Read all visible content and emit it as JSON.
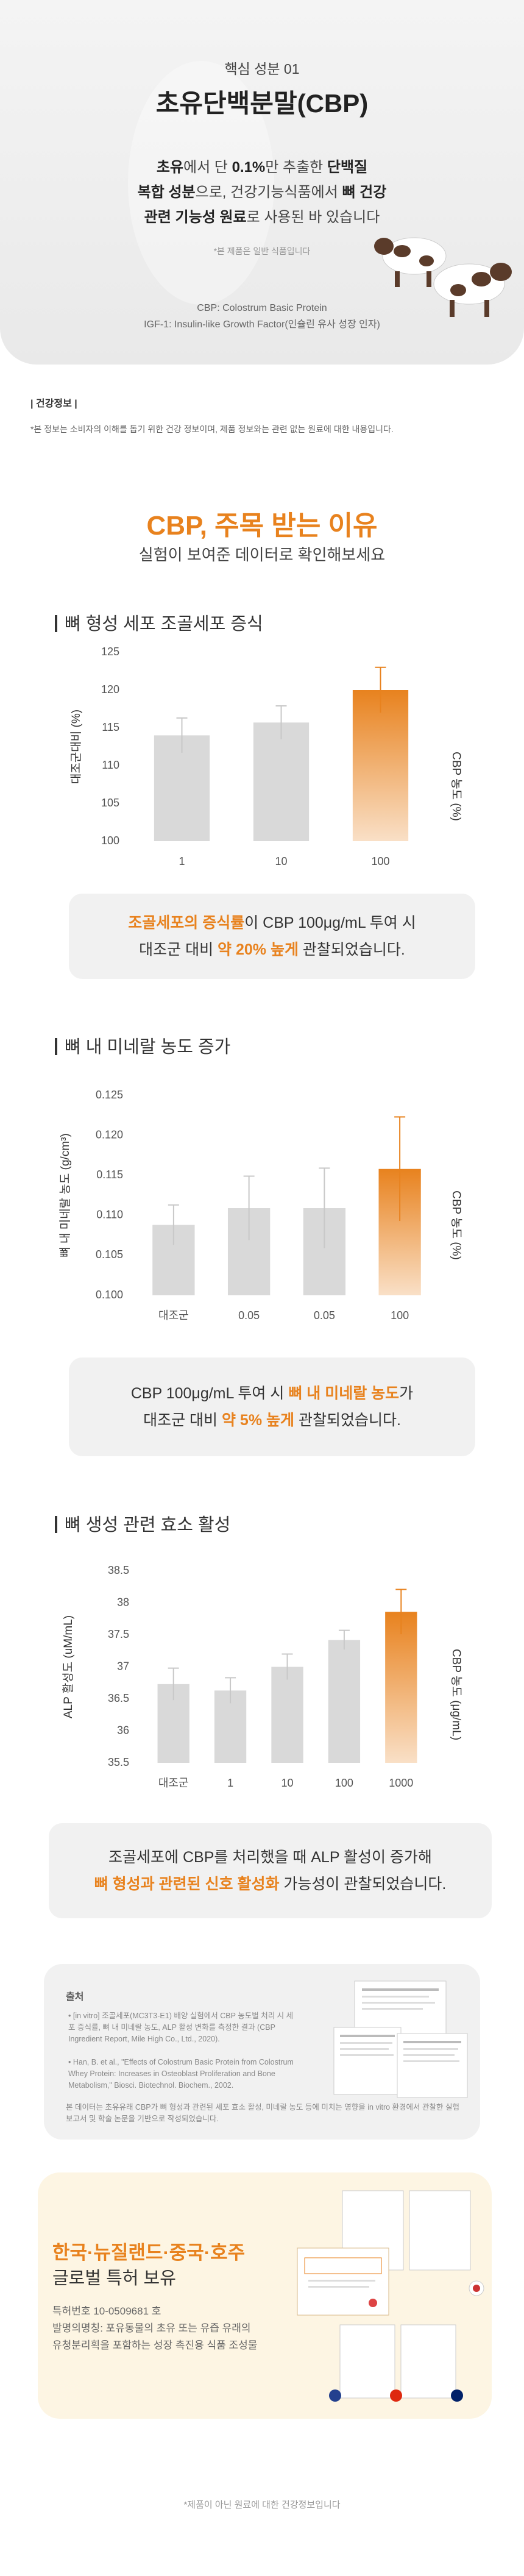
{
  "hero": {
    "eyebrow": "핵심 성분 01",
    "title": "초유단백분말(CBP)",
    "lines": [
      [
        {
          "text": "초유",
          "emphasis": true
        },
        {
          "text": "에서 단 ",
          "emphasis": false
        },
        {
          "text": "0.1%",
          "emphasis": true
        },
        {
          "text": "만 추출한 ",
          "emphasis": false
        },
        {
          "text": "단백질",
          "emphasis": true
        }
      ],
      [
        {
          "text": "복합 성분",
          "emphasis": true
        },
        {
          "text": "으로, 건강기능식품에서 ",
          "emphasis": false
        },
        {
          "text": "뼈 건강",
          "emphasis": true
        }
      ],
      [
        {
          "text": "관련 기능성 원료",
          "emphasis": true
        },
        {
          "text": "로 사용된 바 있습니다",
          "emphasis": false
        }
      ]
    ],
    "note": "*본 제품은 일반 식품입니다",
    "glossary": [
      "CBP: Colostrum Basic Protein",
      "IGF-1: Insulin-like Growth Factor(인슐린 유사 성장 인자)"
    ]
  },
  "health_info": {
    "label": "| 건강정보 |",
    "note": "*본 정보는 소비자의 이해를 돕기 위한 건강 정보이며, 제품 정보와는 관련 없는 원료에 대한 내용입니다."
  },
  "reasons": {
    "title": "CBP, 주목 받는 이유",
    "subtitle": "실험이 보여준 데이터로 확인해보세요"
  },
  "chart_data": [
    {
      "type": "bar",
      "title": "뼈 형성 세포 조골세포 증식",
      "y_label": "대조군대비 (%)",
      "x_label": "CBP 농도 (%)",
      "categories": [
        "1",
        "10",
        "100"
      ],
      "values": [
        114,
        115.7,
        120
      ],
      "errors": [
        2.3,
        2.2,
        3.0
      ],
      "colors": [
        "#d9d9d9",
        "#d9d9d9",
        "#e8821e"
      ],
      "ylim": [
        100,
        125
      ],
      "yticks": [
        100,
        105,
        110,
        115,
        120,
        125
      ],
      "grid": false,
      "callout": [
        [
          {
            "text": "조골세포의 증식률",
            "emphasis": true
          },
          {
            "text": "이 CBP 100μg/mL 투여 시",
            "emphasis": false
          }
        ],
        [
          {
            "text": "대조군 대비 ",
            "emphasis": false
          },
          {
            "text": "약 20% 높게",
            "emphasis": true
          },
          {
            "text": " 관찰되었습니다.",
            "emphasis": false
          }
        ]
      ]
    },
    {
      "type": "bar",
      "title": "뼈 내 미네랄 농도 증가",
      "y_label": "뼈 내 미네랄 농도 (g/cm³)",
      "x_label": "CBP 농도 (%)",
      "categories": [
        "대조군",
        "0.05",
        "0.05",
        "100"
      ],
      "values": [
        0.1088,
        0.1109,
        0.1109,
        0.1158
      ],
      "errors": [
        0.0025,
        0.004,
        0.005,
        0.0065
      ],
      "colors": [
        "#d9d9d9",
        "#d9d9d9",
        "#d9d9d9",
        "#e8821e"
      ],
      "ylim": [
        0.1,
        0.125
      ],
      "yticks": [
        {
          "value": 0.1,
          "label": "0.100"
        },
        0.105,
        {
          "value": 0.11,
          "label": "0.110"
        },
        0.115,
        {
          "value": 0.12,
          "label": "0.120"
        },
        0.125
      ],
      "grid": false,
      "callout": [
        [
          {
            "text": "CBP 100μg/mL 투여 시 ",
            "emphasis": false
          },
          {
            "text": "뼈 내 미네랄 농도",
            "emphasis": true
          },
          {
            "text": "가",
            "emphasis": false
          }
        ],
        [
          {
            "text": "대조군 대비 ",
            "emphasis": false
          },
          {
            "text": "약 5% 높게",
            "emphasis": true
          },
          {
            "text": " 관찰되었습니다.",
            "emphasis": false
          }
        ]
      ]
    },
    {
      "type": "bar",
      "title": "뼈 생성 관련 효소 활성",
      "y_label": "ALP 활성도 (uM/mL)",
      "x_label": "CBP 농도 (μg/mL)",
      "categories": [
        "대조군",
        "1",
        "10",
        "100",
        "1000"
      ],
      "values": [
        36.73,
        36.63,
        37.0,
        37.42,
        37.86
      ],
      "errors": [
        0.25,
        0.2,
        0.2,
        0.15,
        0.35
      ],
      "colors": [
        "#d9d9d9",
        "#d9d9d9",
        "#d9d9d9",
        "#d9d9d9",
        "#e8821e"
      ],
      "ylim": [
        35.5,
        38.5
      ],
      "yticks": [
        35.5,
        36,
        36.5,
        37,
        37.5,
        38,
        38.5
      ],
      "grid": false,
      "callout": [
        [
          {
            "text": "조골세포에 CBP를 처리했을 때 ALP 활성이 증가해",
            "emphasis": false
          }
        ],
        [
          {
            "text": "뼈 형성과 관련된 신호 활성화",
            "emphasis": true
          },
          {
            "text": " 가능성이 관찰되었습니다.",
            "emphasis": false
          }
        ]
      ]
    }
  ],
  "references": {
    "title": "출처",
    "items": [
      "[in vitro] 조골세포(MC3T3-E1) 배양 실험에서 CBP 농도별 처리 시 세포 증식률, 뼈 내 미네랄 농도, ALP 활성 변화를 측정한 결과 (CBP Ingredient Report, Mile High Co., Ltd., 2020).",
      "Han, B. et al., \"Effects of Colostrum Basic Protein from Colostrum Whey Protein: Increases in Osteoblast Proliferation and Bone Metabolism,\" Biosci. Biotechnol. Biochem., 2002."
    ],
    "note": "본 데이터는 초유유래 CBP가 뼈 형성과 관련된 세포 효소 활성, 미네랄 농도 등에 미치는 영향을 in vitro 환경에서 관찰한 실험 보고서 및 학술 논문을 기반으로 작성되었습니다."
  },
  "patent": {
    "countries": "한국·뉴질랜드·중국·호주",
    "title": "글로벌 특허 보유",
    "details": [
      "특허번호 10-0509681 호",
      "발명의명칭: 포유동물의 초유 또는 유즙 유래의",
      "유청분리획을 포함하는 성장 촉진용 식품 조성물"
    ]
  },
  "footer": "*제품이 아닌 원료에 대한 건강정보입니다"
}
